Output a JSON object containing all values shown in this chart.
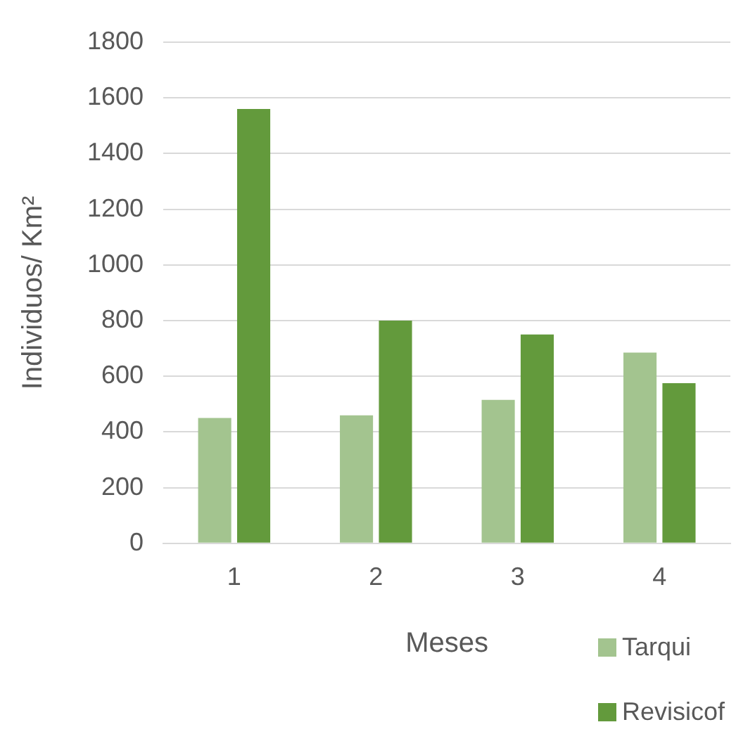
{
  "chart_data": {
    "type": "bar",
    "xlabel": "Meses",
    "ylabel": "Individuos/ Km²",
    "categories": [
      "1",
      "2",
      "3",
      "4"
    ],
    "series": [
      {
        "name": "Tarqui",
        "color": "#a3c48f",
        "values": [
          450,
          460,
          515,
          685
        ]
      },
      {
        "name": "Revisicof",
        "color": "#639a3c",
        "values": [
          1560,
          800,
          750,
          575
        ]
      }
    ],
    "ylim": [
      0,
      1800
    ],
    "yticks": [
      0,
      200,
      400,
      600,
      800,
      1000,
      1200,
      1400,
      1600,
      1800
    ],
    "grid": "y",
    "legend": "bottom right"
  }
}
